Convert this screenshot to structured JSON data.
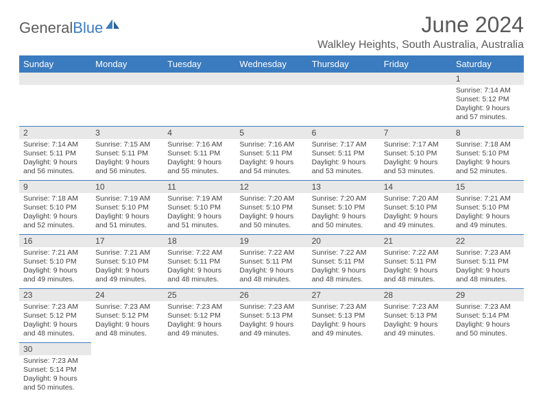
{
  "logo": {
    "text_main": "General",
    "text_accent": "Blue"
  },
  "title": "June 2024",
  "location": "Walkley Heights, South Australia, Australia",
  "colors": {
    "header_bg": "#3b7bbf",
    "header_text": "#ffffff",
    "daynum_bg": "#e8e8e8",
    "border": "#3b7bbf",
    "text": "#444444",
    "title_text": "#595959"
  },
  "day_headers": [
    "Sunday",
    "Monday",
    "Tuesday",
    "Wednesday",
    "Thursday",
    "Friday",
    "Saturday"
  ],
  "weeks": [
    [
      {
        "n": "",
        "l1": "",
        "l2": "",
        "l3": "",
        "l4": ""
      },
      {
        "n": "",
        "l1": "",
        "l2": "",
        "l3": "",
        "l4": ""
      },
      {
        "n": "",
        "l1": "",
        "l2": "",
        "l3": "",
        "l4": ""
      },
      {
        "n": "",
        "l1": "",
        "l2": "",
        "l3": "",
        "l4": ""
      },
      {
        "n": "",
        "l1": "",
        "l2": "",
        "l3": "",
        "l4": ""
      },
      {
        "n": "",
        "l1": "",
        "l2": "",
        "l3": "",
        "l4": ""
      },
      {
        "n": "1",
        "l1": "Sunrise: 7:14 AM",
        "l2": "Sunset: 5:12 PM",
        "l3": "Daylight: 9 hours",
        "l4": "and 57 minutes."
      }
    ],
    [
      {
        "n": "2",
        "l1": "Sunrise: 7:14 AM",
        "l2": "Sunset: 5:11 PM",
        "l3": "Daylight: 9 hours",
        "l4": "and 56 minutes."
      },
      {
        "n": "3",
        "l1": "Sunrise: 7:15 AM",
        "l2": "Sunset: 5:11 PM",
        "l3": "Daylight: 9 hours",
        "l4": "and 56 minutes."
      },
      {
        "n": "4",
        "l1": "Sunrise: 7:16 AM",
        "l2": "Sunset: 5:11 PM",
        "l3": "Daylight: 9 hours",
        "l4": "and 55 minutes."
      },
      {
        "n": "5",
        "l1": "Sunrise: 7:16 AM",
        "l2": "Sunset: 5:11 PM",
        "l3": "Daylight: 9 hours",
        "l4": "and 54 minutes."
      },
      {
        "n": "6",
        "l1": "Sunrise: 7:17 AM",
        "l2": "Sunset: 5:11 PM",
        "l3": "Daylight: 9 hours",
        "l4": "and 53 minutes."
      },
      {
        "n": "7",
        "l1": "Sunrise: 7:17 AM",
        "l2": "Sunset: 5:10 PM",
        "l3": "Daylight: 9 hours",
        "l4": "and 53 minutes."
      },
      {
        "n": "8",
        "l1": "Sunrise: 7:18 AM",
        "l2": "Sunset: 5:10 PM",
        "l3": "Daylight: 9 hours",
        "l4": "and 52 minutes."
      }
    ],
    [
      {
        "n": "9",
        "l1": "Sunrise: 7:18 AM",
        "l2": "Sunset: 5:10 PM",
        "l3": "Daylight: 9 hours",
        "l4": "and 52 minutes."
      },
      {
        "n": "10",
        "l1": "Sunrise: 7:19 AM",
        "l2": "Sunset: 5:10 PM",
        "l3": "Daylight: 9 hours",
        "l4": "and 51 minutes."
      },
      {
        "n": "11",
        "l1": "Sunrise: 7:19 AM",
        "l2": "Sunset: 5:10 PM",
        "l3": "Daylight: 9 hours",
        "l4": "and 51 minutes."
      },
      {
        "n": "12",
        "l1": "Sunrise: 7:20 AM",
        "l2": "Sunset: 5:10 PM",
        "l3": "Daylight: 9 hours",
        "l4": "and 50 minutes."
      },
      {
        "n": "13",
        "l1": "Sunrise: 7:20 AM",
        "l2": "Sunset: 5:10 PM",
        "l3": "Daylight: 9 hours",
        "l4": "and 50 minutes."
      },
      {
        "n": "14",
        "l1": "Sunrise: 7:20 AM",
        "l2": "Sunset: 5:10 PM",
        "l3": "Daylight: 9 hours",
        "l4": "and 49 minutes."
      },
      {
        "n": "15",
        "l1": "Sunrise: 7:21 AM",
        "l2": "Sunset: 5:10 PM",
        "l3": "Daylight: 9 hours",
        "l4": "and 49 minutes."
      }
    ],
    [
      {
        "n": "16",
        "l1": "Sunrise: 7:21 AM",
        "l2": "Sunset: 5:10 PM",
        "l3": "Daylight: 9 hours",
        "l4": "and 49 minutes."
      },
      {
        "n": "17",
        "l1": "Sunrise: 7:21 AM",
        "l2": "Sunset: 5:10 PM",
        "l3": "Daylight: 9 hours",
        "l4": "and 49 minutes."
      },
      {
        "n": "18",
        "l1": "Sunrise: 7:22 AM",
        "l2": "Sunset: 5:11 PM",
        "l3": "Daylight: 9 hours",
        "l4": "and 48 minutes."
      },
      {
        "n": "19",
        "l1": "Sunrise: 7:22 AM",
        "l2": "Sunset: 5:11 PM",
        "l3": "Daylight: 9 hours",
        "l4": "and 48 minutes."
      },
      {
        "n": "20",
        "l1": "Sunrise: 7:22 AM",
        "l2": "Sunset: 5:11 PM",
        "l3": "Daylight: 9 hours",
        "l4": "and 48 minutes."
      },
      {
        "n": "21",
        "l1": "Sunrise: 7:22 AM",
        "l2": "Sunset: 5:11 PM",
        "l3": "Daylight: 9 hours",
        "l4": "and 48 minutes."
      },
      {
        "n": "22",
        "l1": "Sunrise: 7:23 AM",
        "l2": "Sunset: 5:11 PM",
        "l3": "Daylight: 9 hours",
        "l4": "and 48 minutes."
      }
    ],
    [
      {
        "n": "23",
        "l1": "Sunrise: 7:23 AM",
        "l2": "Sunset: 5:12 PM",
        "l3": "Daylight: 9 hours",
        "l4": "and 48 minutes."
      },
      {
        "n": "24",
        "l1": "Sunrise: 7:23 AM",
        "l2": "Sunset: 5:12 PM",
        "l3": "Daylight: 9 hours",
        "l4": "and 48 minutes."
      },
      {
        "n": "25",
        "l1": "Sunrise: 7:23 AM",
        "l2": "Sunset: 5:12 PM",
        "l3": "Daylight: 9 hours",
        "l4": "and 49 minutes."
      },
      {
        "n": "26",
        "l1": "Sunrise: 7:23 AM",
        "l2": "Sunset: 5:13 PM",
        "l3": "Daylight: 9 hours",
        "l4": "and 49 minutes."
      },
      {
        "n": "27",
        "l1": "Sunrise: 7:23 AM",
        "l2": "Sunset: 5:13 PM",
        "l3": "Daylight: 9 hours",
        "l4": "and 49 minutes."
      },
      {
        "n": "28",
        "l1": "Sunrise: 7:23 AM",
        "l2": "Sunset: 5:13 PM",
        "l3": "Daylight: 9 hours",
        "l4": "and 49 minutes."
      },
      {
        "n": "29",
        "l1": "Sunrise: 7:23 AM",
        "l2": "Sunset: 5:14 PM",
        "l3": "Daylight: 9 hours",
        "l4": "and 50 minutes."
      }
    ],
    [
      {
        "n": "30",
        "l1": "Sunrise: 7:23 AM",
        "l2": "Sunset: 5:14 PM",
        "l3": "Daylight: 9 hours",
        "l4": "and 50 minutes."
      },
      {
        "n": "",
        "l1": "",
        "l2": "",
        "l3": "",
        "l4": ""
      },
      {
        "n": "",
        "l1": "",
        "l2": "",
        "l3": "",
        "l4": ""
      },
      {
        "n": "",
        "l1": "",
        "l2": "",
        "l3": "",
        "l4": ""
      },
      {
        "n": "",
        "l1": "",
        "l2": "",
        "l3": "",
        "l4": ""
      },
      {
        "n": "",
        "l1": "",
        "l2": "",
        "l3": "",
        "l4": ""
      },
      {
        "n": "",
        "l1": "",
        "l2": "",
        "l3": "",
        "l4": ""
      }
    ]
  ]
}
